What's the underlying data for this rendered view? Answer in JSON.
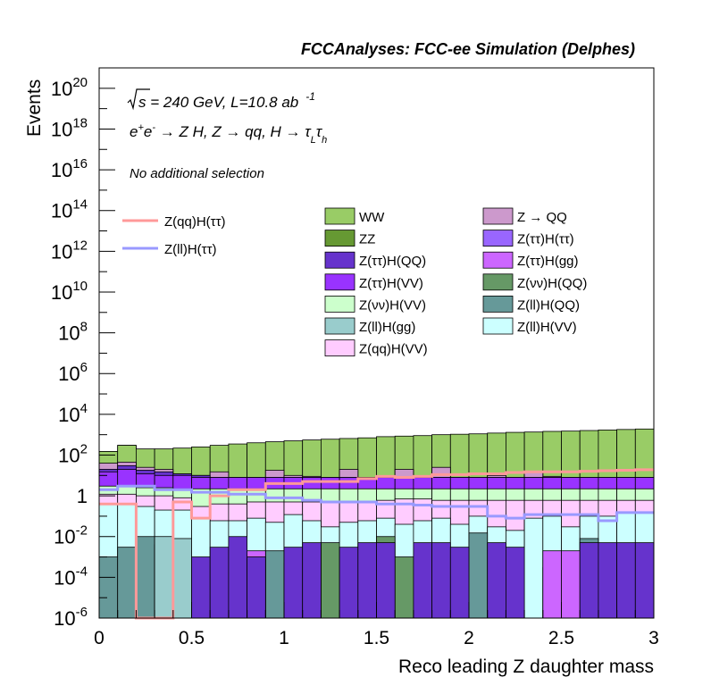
{
  "header": "FCCAnalyses: FCC-ee Simulation (Delphes)",
  "annotations": {
    "energy_prefix": "s",
    "energy_rest": " = 240 GeV, L=10.8 ab",
    "energy_sup": "-1",
    "process_text": "e+e- → Z H, Z → qq, H → τLτh",
    "process": {
      "e1": "e",
      "sup1": "+",
      "e2": "e",
      "sup2": "-",
      "arrow1": " → Z H, Z  → qq, H  → ",
      "tau1": "τ",
      "sub1": "L",
      "tau2": "τ",
      "sub2": "h"
    },
    "selection": "No additional selection"
  },
  "chart_data": {
    "type": "histogram",
    "stacked": true,
    "xlabel": "Reco leading Z daughter mass",
    "ylabel": "Events",
    "xlim": [
      0,
      3
    ],
    "ylim": [
      1e-06,
      1e+21
    ],
    "yscale": "log",
    "bin_edges": [
      0,
      0.1,
      0.2,
      0.3,
      0.4,
      0.5,
      0.6,
      0.7,
      0.8,
      0.9,
      1.0,
      1.1,
      1.2,
      1.3,
      1.4,
      1.5,
      1.6,
      1.7,
      1.8,
      1.9,
      2.0,
      2.1,
      2.2,
      2.3,
      2.4,
      2.5,
      2.6,
      2.7,
      2.8,
      2.9,
      3.0
    ],
    "x_ticks": [
      "0",
      "0.5",
      "1",
      "1.5",
      "2",
      "2.5",
      "3"
    ],
    "x_tick_values": [
      0,
      0.5,
      1,
      1.5,
      2,
      2.5,
      3
    ],
    "y_ticks": [
      {
        "base": "10",
        "exp": "-6",
        "value": 1e-06
      },
      {
        "base": "10",
        "exp": "-4",
        "value": 0.0001
      },
      {
        "base": "10",
        "exp": "-2",
        "value": 0.01
      },
      {
        "base": "1",
        "exp": "",
        "value": 1
      },
      {
        "base": "10",
        "exp": "2",
        "value": 100.0
      },
      {
        "base": "10",
        "exp": "4",
        "value": 10000.0
      },
      {
        "base": "10",
        "exp": "6",
        "value": 1000000.0
      },
      {
        "base": "10",
        "exp": "8",
        "value": 100000000.0
      },
      {
        "base": "10",
        "exp": "10",
        "value": 10000000000.0
      },
      {
        "base": "10",
        "exp": "12",
        "value": 1000000000000.0
      },
      {
        "base": "10",
        "exp": "14",
        "value": 100000000000000.0
      },
      {
        "base": "10",
        "exp": "16",
        "value": 1e+16
      },
      {
        "base": "10",
        "exp": "18",
        "value": 1e+18
      },
      {
        "base": "10",
        "exp": "20",
        "value": 1e+20
      }
    ],
    "stack_totals": [
      {
        "name": "ZZ",
        "color": "#669933",
        "values": [
          150,
          300,
          150,
          100,
          80,
          80,
          60,
          50,
          40,
          30,
          25,
          20,
          15,
          12,
          10,
          10,
          8,
          8,
          7,
          6,
          6,
          5,
          5,
          5,
          5,
          5,
          4,
          4,
          4,
          4
        ]
      },
      {
        "name": "WW",
        "color": "#99cc66",
        "values": [
          150,
          300,
          200,
          200,
          220,
          250,
          300,
          350,
          400,
          450,
          500,
          550,
          600,
          650,
          700,
          800,
          850,
          900,
          1000,
          1050,
          1100,
          1200,
          1300,
          1350,
          1450,
          1500,
          1600,
          1700,
          1800,
          1900
        ]
      },
      {
        "name": "Z → QQ",
        "color": "#cc99cc",
        "values": [
          40,
          45,
          25,
          20,
          12,
          10,
          15,
          8,
          8,
          18,
          10,
          9,
          8,
          20,
          6,
          6,
          20,
          9,
          25,
          6,
          6,
          10,
          6,
          15,
          9,
          8,
          6,
          7,
          8,
          8
        ]
      },
      {
        "name": "Z(ττ)H(QQ)",
        "color": "#6633cc",
        "values": [
          20,
          30,
          18,
          15,
          12,
          10,
          8,
          8,
          8,
          8,
          8,
          8,
          8,
          8,
          8,
          8,
          8,
          8,
          8,
          8,
          8,
          8,
          8,
          8,
          8,
          8,
          8,
          8,
          8,
          8
        ]
      },
      {
        "name": "Z(ττ)H(VV)",
        "color": "#9933ff",
        "values": [
          15,
          20,
          12,
          10,
          10,
          8,
          8,
          8,
          8,
          8,
          8,
          8,
          8,
          8,
          8,
          8,
          8,
          8,
          8,
          8,
          8,
          8,
          8,
          8,
          8,
          8,
          8,
          8,
          8,
          8
        ]
      },
      {
        "name": "Z(νν)H(VV)",
        "color": "#ccffcc",
        "values": [
          3,
          3,
          2.5,
          2.5,
          2.2,
          2.2,
          2.2,
          2.2,
          2.2,
          2.2,
          2.2,
          2.2,
          2.2,
          2.2,
          2.2,
          2.2,
          2.2,
          2.2,
          2.2,
          2.2,
          2.2,
          2.2,
          2.2,
          2.2,
          2.2,
          2.2,
          2.2,
          2.2,
          2.2,
          2.2
        ]
      },
      {
        "name": "Z(qq)H(VV)",
        "color": "#ffccff",
        "values": [
          1.2,
          1.2,
          1,
          1,
          0.8,
          0.3,
          0.4,
          0.4,
          0.5,
          0.5,
          0.5,
          0.5,
          0.5,
          0.5,
          0.5,
          0.6,
          0.7,
          0.7,
          0.6,
          0.6,
          0.6,
          0.6,
          0.6,
          0.6,
          0.6,
          0.6,
          0.6,
          0.6,
          0.6,
          0.6
        ]
      },
      {
        "name": "Z(ll)H(VV)",
        "color": "#ccffff",
        "values": [
          0.4,
          0.4,
          0.3,
          0.2,
          0.2,
          0.08,
          0.06,
          0.06,
          0.08,
          0.05,
          0.12,
          0.06,
          0.03,
          0.05,
          0.06,
          0.08,
          0.04,
          0.06,
          0.08,
          0.04,
          0.1,
          0.03,
          0.02,
          0.08,
          0.1,
          0.03,
          0.1,
          0.1,
          0.15,
          0.15
        ]
      },
      {
        "name": "Z(ll)H(QQ)",
        "color": "#669999",
        "values": [
          0.001,
          0.003,
          0.01,
          0.004,
          0,
          0,
          0,
          0,
          0,
          0.002,
          0.0005,
          0.002,
          0,
          0,
          0,
          0,
          0,
          0,
          0,
          0,
          0.015,
          0,
          0.002,
          0,
          0.0003,
          0,
          0.008,
          0,
          0,
          0
        ]
      },
      {
        "name": "Z(ll)H(gg)",
        "color": "#99cccc",
        "values": [
          0,
          0,
          0,
          0.01,
          0.008,
          0,
          0,
          0,
          0,
          0,
          0,
          0,
          0,
          0,
          0,
          0,
          0,
          0,
          0,
          0,
          0,
          0,
          0,
          0,
          0,
          0,
          0,
          0,
          0,
          0
        ]
      },
      {
        "name": "Z(νν)H(QQ)",
        "color": "#669966",
        "values": [
          0,
          0,
          0,
          0,
          0,
          0,
          0,
          0,
          0,
          0,
          0,
          0,
          0.005,
          0,
          0,
          0.01,
          0.001,
          0,
          0,
          0,
          0,
          0,
          0,
          0,
          0,
          0,
          0,
          0,
          0,
          0
        ]
      },
      {
        "name": "Z(ττ)H(gg)",
        "color": "#cc66ff",
        "values": [
          0,
          0,
          0,
          0,
          0,
          0,
          0,
          0,
          0.002,
          0,
          0,
          0,
          0,
          0,
          0,
          0,
          0,
          0,
          0,
          0,
          0,
          0,
          0,
          0,
          0.002,
          0.002,
          0,
          0,
          0,
          0
        ]
      },
      {
        "name": "Z(ττ)H(QQ) low",
        "color": "#6633cc",
        "values": [
          0,
          0,
          0,
          0,
          0,
          0.001,
          0.003,
          0.01,
          0.001,
          0,
          0.003,
          0.005,
          0,
          0.003,
          0.005,
          0.005,
          0,
          0.005,
          0.005,
          0.003,
          0,
          0.005,
          0.003,
          0,
          0,
          0,
          0.005,
          0.005,
          0.005,
          0.005
        ]
      }
    ],
    "signals": [
      {
        "name": "Z(qq)H(ττ)",
        "color": "#ff9999",
        "values": [
          0.4,
          0.4,
          1e-06,
          1e-06,
          0.5,
          0.08,
          1,
          2,
          2,
          4,
          4,
          5,
          5,
          5,
          7,
          9,
          8,
          9,
          11,
          11,
          12,
          12,
          14,
          15,
          15,
          15,
          16,
          17,
          18,
          19
        ]
      },
      {
        "name": "Z(ll)H(ττ)",
        "color": "#9999ff",
        "values": [
          2,
          3,
          3,
          2,
          2,
          1.5,
          1.5,
          1.2,
          1.2,
          0.8,
          0.8,
          0.6,
          0.5,
          0.5,
          0.5,
          0.4,
          0.4,
          0.35,
          0.3,
          0.3,
          0.3,
          0.1,
          0.08,
          0.12,
          0.12,
          0.12,
          0.12,
          0.06,
          0.15,
          0.15
        ]
      }
    ],
    "legend": {
      "lines": [
        {
          "label": "Z(qq)H(ττ)",
          "color": "#ff9999"
        },
        {
          "label": "Z(ll)H(ττ)",
          "color": "#9999ff"
        }
      ],
      "boxes": [
        {
          "label": "WW",
          "color": "#99cc66"
        },
        {
          "label": "Z → QQ",
          "color": "#cc99cc"
        },
        {
          "label": "ZZ",
          "color": "#669933"
        },
        {
          "label": "Z(ττ)H(ττ)",
          "color": "#9966ff"
        },
        {
          "label": "Z(ττ)H(QQ)",
          "color": "#6633cc"
        },
        {
          "label": "Z(ττ)H(gg)",
          "color": "#cc66ff"
        },
        {
          "label": "Z(ττ)H(VV)",
          "color": "#9933ff"
        },
        {
          "label": "Z(νν)H(QQ)",
          "color": "#669966"
        },
        {
          "label": "Z(νν)H(VV)",
          "color": "#ccffcc"
        },
        {
          "label": "Z(ll)H(QQ)",
          "color": "#669999"
        },
        {
          "label": "Z(ll)H(gg)",
          "color": "#99cccc"
        },
        {
          "label": "Z(ll)H(VV)",
          "color": "#ccffff"
        },
        {
          "label": "Z(qq)H(VV)",
          "color": "#ffccff"
        }
      ]
    }
  }
}
